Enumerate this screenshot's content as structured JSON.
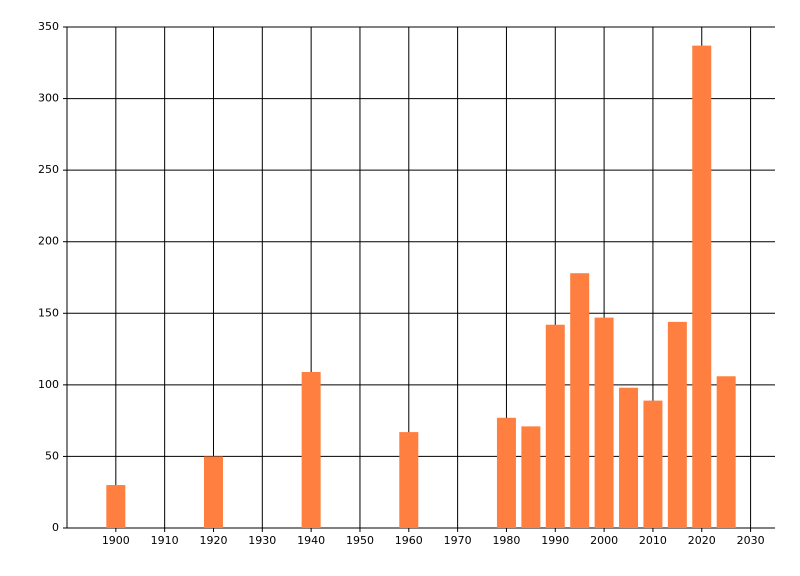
{
  "chart_data": {
    "type": "bar",
    "x": [
      1900,
      1920,
      1940,
      1960,
      1980,
      1985,
      1990,
      1995,
      2000,
      2005,
      2010,
      2015,
      2020,
      2025
    ],
    "values": [
      30,
      50,
      109,
      67,
      77,
      71,
      142,
      178,
      147,
      98,
      89,
      144,
      337,
      106
    ],
    "color": "#ff7f40",
    "xlim": [
      1890,
      2035
    ],
    "xticks": [
      1900,
      1910,
      1920,
      1930,
      1940,
      1950,
      1960,
      1970,
      1980,
      1990,
      2000,
      2010,
      2020,
      2030
    ],
    "ylim": [
      0,
      350
    ],
    "yticks": [
      0,
      50,
      100,
      150,
      200,
      250,
      300,
      350
    ],
    "grid": true
  }
}
